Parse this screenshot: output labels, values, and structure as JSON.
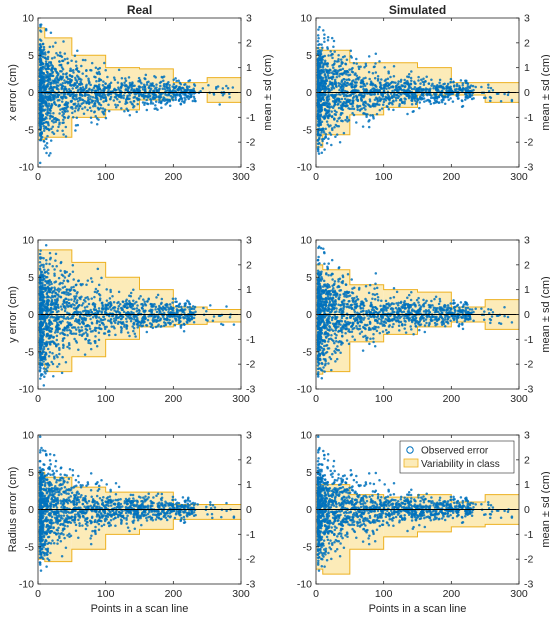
{
  "colors": {
    "points": "#0072BD",
    "band_fill": "#FCEBB8",
    "band_edge": "#EDB120",
    "zero_line": "#000000"
  },
  "legend": {
    "observed": "Observed error",
    "variability": "Variability in class",
    "location": "top-right of bottom-right panel"
  },
  "chart_data": [
    {
      "type": "scatter",
      "title": "Real",
      "xlabel": "",
      "ylabel": "x error (cm)",
      "ylabel_right": "mean ± sd (cm)",
      "xlim": [
        0,
        300
      ],
      "ylim": [
        -10,
        10
      ],
      "ylim_right": [
        -3,
        3
      ],
      "xticks": [
        0,
        100,
        200,
        300
      ],
      "yticks": [
        -10,
        -5,
        0,
        5,
        10
      ],
      "yticks_right": [
        -3,
        -2,
        -1,
        0,
        1,
        2,
        3
      ],
      "classes": [
        {
          "from": 0,
          "to": 10,
          "upper": 2.6,
          "lower": -1.9
        },
        {
          "from": 10,
          "to": 50,
          "upper": 2.2,
          "lower": -1.8
        },
        {
          "from": 50,
          "to": 100,
          "upper": 1.5,
          "lower": -1.0
        },
        {
          "from": 100,
          "to": 150,
          "upper": 1.0,
          "lower": -0.7
        },
        {
          "from": 150,
          "to": 200,
          "upper": 0.95,
          "lower": -0.3
        },
        {
          "from": 200,
          "to": 250,
          "upper": 0.4,
          "lower": 0.0
        },
        {
          "from": 250,
          "to": 300,
          "upper": 0.6,
          "lower": -0.4
        }
      ],
      "scatter_sd": 1.8,
      "n_points": 1500
    },
    {
      "type": "scatter",
      "title": "Simulated",
      "xlabel": "",
      "ylabel": "",
      "ylabel_right": "mean ± sd (cm)",
      "xlim": [
        0,
        300
      ],
      "ylim": [
        -10,
        10
      ],
      "ylim_right": [
        -3,
        3
      ],
      "xticks": [
        0,
        100,
        200,
        300
      ],
      "yticks": [
        -10,
        -5,
        0,
        5,
        10
      ],
      "yticks_right": [
        -3,
        -2,
        -1,
        0,
        1,
        2,
        3
      ],
      "classes": [
        {
          "from": 0,
          "to": 10,
          "upper": 1.8,
          "lower": -2.2
        },
        {
          "from": 10,
          "to": 50,
          "upper": 1.7,
          "lower": -1.7
        },
        {
          "from": 50,
          "to": 100,
          "upper": 1.2,
          "lower": -0.9
        },
        {
          "from": 100,
          "to": 150,
          "upper": 1.2,
          "lower": -0.6
        },
        {
          "from": 150,
          "to": 200,
          "upper": 1.0,
          "lower": -0.1
        },
        {
          "from": 200,
          "to": 250,
          "upper": 0.4,
          "lower": -0.1
        },
        {
          "from": 250,
          "to": 300,
          "upper": 0.4,
          "lower": -0.4
        }
      ],
      "scatter_sd": 1.7,
      "n_points": 1500
    },
    {
      "type": "scatter",
      "title": "",
      "xlabel": "",
      "ylabel": "y error (cm)",
      "ylabel_right": "",
      "xlim": [
        0,
        300
      ],
      "ylim": [
        -10,
        10
      ],
      "ylim_right": [
        -3,
        3
      ],
      "xticks": [
        0,
        100,
        200,
        300
      ],
      "yticks": [
        -10,
        -5,
        0,
        5,
        10
      ],
      "yticks_right": [
        -3,
        -2,
        -1,
        0,
        1,
        2,
        3
      ],
      "classes": [
        {
          "from": 0,
          "to": 10,
          "upper": 2.6,
          "lower": -2.0
        },
        {
          "from": 10,
          "to": 50,
          "upper": 2.6,
          "lower": -2.3
        },
        {
          "from": 50,
          "to": 100,
          "upper": 2.1,
          "lower": -1.7
        },
        {
          "from": 100,
          "to": 150,
          "upper": 1.5,
          "lower": -1.0
        },
        {
          "from": 150,
          "to": 200,
          "upper": 1.0,
          "lower": -0.5
        },
        {
          "from": 200,
          "to": 250,
          "upper": 0.3,
          "lower": -0.4
        },
        {
          "from": 250,
          "to": 300,
          "upper": 0.2,
          "lower": -0.3
        }
      ],
      "scatter_sd": 2.0,
      "n_points": 1500
    },
    {
      "type": "scatter",
      "title": "",
      "xlabel": "",
      "ylabel": "",
      "ylabel_right": "mean ± sd (cm)",
      "xlim": [
        0,
        300
      ],
      "ylim": [
        -10,
        10
      ],
      "ylim_right": [
        -3,
        3
      ],
      "xticks": [
        0,
        100,
        200,
        300
      ],
      "yticks": [
        -10,
        -5,
        0,
        5,
        10
      ],
      "yticks_right": [
        -3,
        -2,
        -1,
        0,
        1,
        2,
        3
      ],
      "classes": [
        {
          "from": 0,
          "to": 10,
          "upper": 2.0,
          "lower": -2.4
        },
        {
          "from": 10,
          "to": 50,
          "upper": 1.8,
          "lower": -2.3
        },
        {
          "from": 50,
          "to": 100,
          "upper": 1.2,
          "lower": -1.1
        },
        {
          "from": 100,
          "to": 150,
          "upper": 1.0,
          "lower": -0.8
        },
        {
          "from": 150,
          "to": 200,
          "upper": 0.9,
          "lower": -0.5
        },
        {
          "from": 200,
          "to": 250,
          "upper": 0.3,
          "lower": -0.3
        },
        {
          "from": 250,
          "to": 300,
          "upper": 0.6,
          "lower": -0.6
        }
      ],
      "scatter_sd": 1.8,
      "n_points": 1500
    },
    {
      "type": "scatter",
      "title": "",
      "xlabel": "Points in a scan line",
      "ylabel": "Radius error (cm)",
      "ylabel_right": "",
      "xlim": [
        0,
        300
      ],
      "ylim": [
        -10,
        10
      ],
      "ylim_right": [
        -3,
        3
      ],
      "xticks": [
        0,
        100,
        200,
        300
      ],
      "yticks": [
        -10,
        -5,
        0,
        5,
        10
      ],
      "yticks_right": [
        -3,
        -2,
        -1,
        0,
        1,
        2,
        3
      ],
      "classes": [
        {
          "from": 0,
          "to": 10,
          "upper": 1.5,
          "lower": -2.0
        },
        {
          "from": 10,
          "to": 50,
          "upper": 1.3,
          "lower": -2.1
        },
        {
          "from": 50,
          "to": 100,
          "upper": 0.9,
          "lower": -1.6
        },
        {
          "from": 100,
          "to": 150,
          "upper": 0.7,
          "lower": -1.0
        },
        {
          "from": 150,
          "to": 200,
          "upper": 0.7,
          "lower": -0.8
        },
        {
          "from": 200,
          "to": 250,
          "upper": 0.2,
          "lower": -0.4
        },
        {
          "from": 250,
          "to": 300,
          "upper": 0.2,
          "lower": -0.4
        }
      ],
      "scatter_sd": 1.6,
      "n_points": 1500
    },
    {
      "type": "scatter",
      "title": "",
      "xlabel": "Points in a scan line",
      "ylabel": "",
      "ylabel_right": "mean ± sd (cm)",
      "xlim": [
        0,
        300
      ],
      "ylim": [
        -10,
        10
      ],
      "ylim_right": [
        -3,
        3
      ],
      "xticks": [
        0,
        100,
        200,
        300
      ],
      "yticks": [
        -10,
        -5,
        0,
        5,
        10
      ],
      "yticks_right": [
        -3,
        -2,
        -1,
        0,
        1,
        2,
        3
      ],
      "classes": [
        {
          "from": 0,
          "to": 10,
          "upper": 1.0,
          "lower": -2.4
        },
        {
          "from": 10,
          "to": 50,
          "upper": 1.0,
          "lower": -2.6
        },
        {
          "from": 50,
          "to": 100,
          "upper": 0.6,
          "lower": -1.6
        },
        {
          "from": 100,
          "to": 150,
          "upper": 0.5,
          "lower": -1.1
        },
        {
          "from": 150,
          "to": 200,
          "upper": 0.6,
          "lower": -0.9
        },
        {
          "from": 200,
          "to": 250,
          "upper": 0.3,
          "lower": -0.7
        },
        {
          "from": 250,
          "to": 300,
          "upper": 0.6,
          "lower": -0.6
        }
      ],
      "scatter_sd": 1.6,
      "n_points": 1500
    }
  ]
}
